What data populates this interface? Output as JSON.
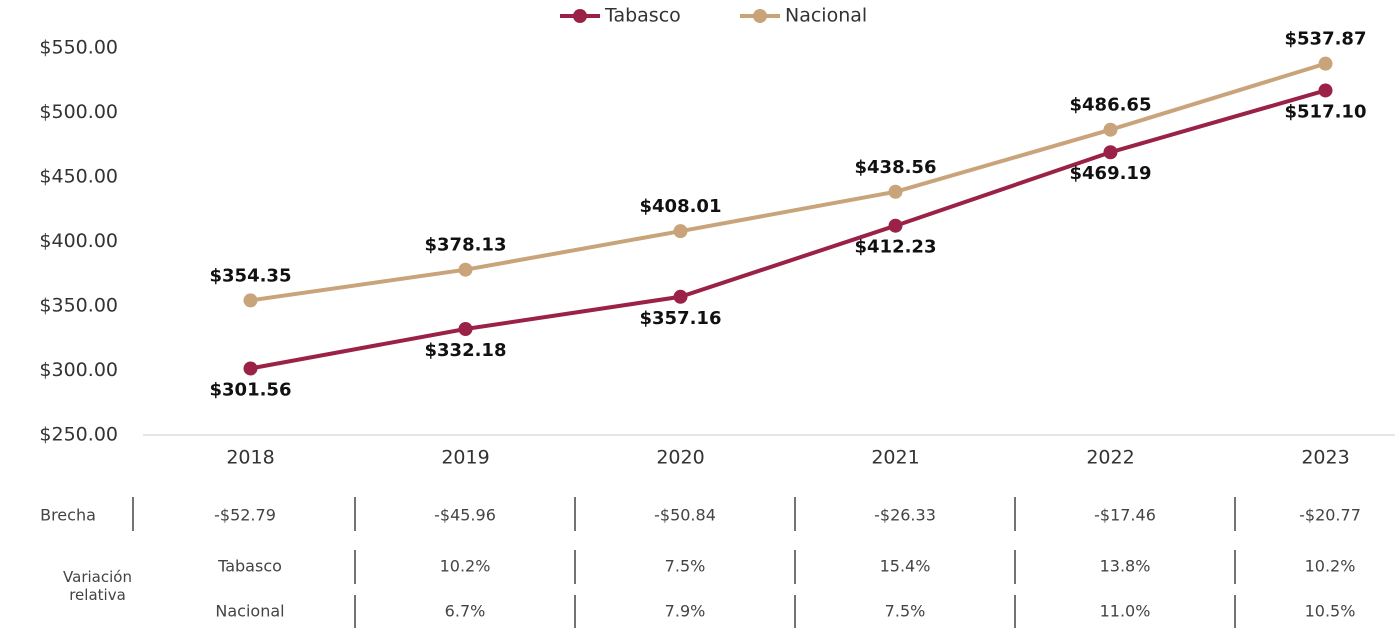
{
  "chart_data": {
    "type": "line",
    "categories": [
      "2018",
      "2019",
      "2020",
      "2021",
      "2022",
      "2023"
    ],
    "series": [
      {
        "name": "Tabasco",
        "color": "#9b2247",
        "values": [
          301.56,
          332.18,
          357.16,
          412.23,
          469.19,
          517.1
        ],
        "value_labels": [
          "$301.56",
          "$332.18",
          "$357.16",
          "$412.23",
          "$469.19",
          "$517.10"
        ]
      },
      {
        "name": "Nacional",
        "color": "#c9a47a",
        "values": [
          354.35,
          378.13,
          408.01,
          438.56,
          486.65,
          537.87
        ],
        "value_labels": [
          "$354.35",
          "$378.13",
          "$408.01",
          "$438.56",
          "$486.65",
          "$537.87"
        ]
      }
    ],
    "ylim": [
      250,
      550
    ],
    "yticks": [
      {
        "value": 250,
        "label": "$250.00"
      },
      {
        "value": 300,
        "label": "$300.00"
      },
      {
        "value": 350,
        "label": "$350.00"
      },
      {
        "value": 400,
        "label": "$400.00"
      },
      {
        "value": 450,
        "label": "$450.00"
      },
      {
        "value": 500,
        "label": "$500.00"
      },
      {
        "value": 550,
        "label": "$550.00"
      }
    ],
    "grid": false,
    "legend": "top"
  },
  "table": {
    "brecha_label": "Brecha",
    "brecha": [
      "-$52.79",
      "-$45.96",
      "-$50.84",
      "-$26.33",
      "-$17.46",
      "-$20.77"
    ],
    "variacion_label": "Variación relativa",
    "rows": [
      {
        "name": "Tabasco",
        "values": [
          "10.2%",
          "7.5%",
          "15.4%",
          "13.8%",
          "10.2%"
        ]
      },
      {
        "name": "Nacional",
        "values": [
          "6.7%",
          "7.9%",
          "7.5%",
          "11.0%",
          "10.5%"
        ]
      }
    ]
  }
}
